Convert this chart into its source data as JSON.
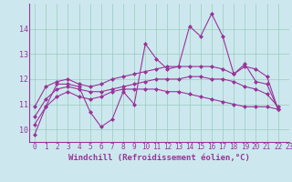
{
  "xlabel": "Windchill (Refroidissement éolien,°C)",
  "background_color": "#cce8ee",
  "grid_color": "#99ccbb",
  "line_color": "#993399",
  "spine_color": "#993399",
  "xlim": [
    -0.5,
    23
  ],
  "ylim": [
    9.5,
    15.0
  ],
  "yticks": [
    10,
    11,
    12,
    13,
    14
  ],
  "xticks": [
    0,
    1,
    2,
    3,
    4,
    5,
    6,
    7,
    8,
    9,
    10,
    11,
    12,
    13,
    14,
    15,
    16,
    17,
    18,
    19,
    20,
    21,
    22,
    23
  ],
  "series": [
    [
      9.8,
      10.9,
      11.8,
      11.8,
      11.7,
      10.7,
      10.1,
      10.4,
      11.5,
      11.0,
      13.4,
      12.8,
      12.4,
      12.5,
      14.1,
      13.7,
      14.6,
      13.7,
      12.2,
      12.6,
      11.9,
      11.8,
      10.8
    ],
    [
      10.9,
      11.7,
      11.9,
      12.0,
      11.8,
      11.7,
      11.8,
      12.0,
      12.1,
      12.2,
      12.3,
      12.4,
      12.5,
      12.5,
      12.5,
      12.5,
      12.5,
      12.4,
      12.2,
      12.5,
      12.4,
      12.1,
      10.8
    ],
    [
      10.5,
      11.2,
      11.6,
      11.7,
      11.6,
      11.5,
      11.5,
      11.6,
      11.7,
      11.8,
      11.9,
      12.0,
      12.0,
      12.0,
      12.1,
      12.1,
      12.0,
      12.0,
      11.9,
      11.7,
      11.6,
      11.4,
      10.9
    ],
    [
      10.2,
      10.9,
      11.3,
      11.5,
      11.3,
      11.2,
      11.3,
      11.5,
      11.6,
      11.6,
      11.6,
      11.6,
      11.5,
      11.5,
      11.4,
      11.3,
      11.2,
      11.1,
      11.0,
      10.9,
      10.9,
      10.9,
      10.8
    ]
  ],
  "marker": "D",
  "markersize": 2.0,
  "linewidth": 0.8,
  "xlabel_fontsize": 6.5,
  "tick_fontsize": 5.5,
  "ytick_fontsize": 6.0
}
